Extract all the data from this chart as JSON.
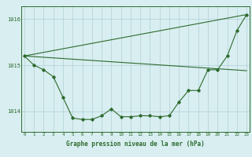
{
  "title": "Graphe pression niveau de la mer (hPa)",
  "background_color": "#d8eef0",
  "grid_color": "#b0cfd8",
  "line_color": "#2d6a2d",
  "x_labels": [
    "0",
    "1",
    "2",
    "3",
    "4",
    "5",
    "6",
    "7",
    "8",
    "9",
    "10",
    "11",
    "12",
    "13",
    "14",
    "15",
    "16",
    "17",
    "18",
    "19",
    "20",
    "21",
    "22",
    "23"
  ],
  "main_series": [
    1015.2,
    1015.0,
    1014.9,
    1014.75,
    1014.3,
    1013.85,
    1013.82,
    1013.82,
    1013.9,
    1014.05,
    1013.88,
    1013.88,
    1013.9,
    1013.9,
    1013.88,
    1013.9,
    1014.2,
    1014.45,
    1014.45,
    1014.9,
    1014.9,
    1015.2,
    1015.75,
    1016.1
  ],
  "straight_line1_x": [
    0,
    23
  ],
  "straight_line1_y": [
    1015.2,
    1016.1
  ],
  "straight_line2_x": [
    0,
    23
  ],
  "straight_line2_y": [
    1015.2,
    1014.88
  ],
  "ylim": [
    1013.55,
    1016.28
  ],
  "yticks": [
    1014.0,
    1015.0,
    1016.0
  ],
  "xlim": [
    -0.3,
    23.3
  ]
}
